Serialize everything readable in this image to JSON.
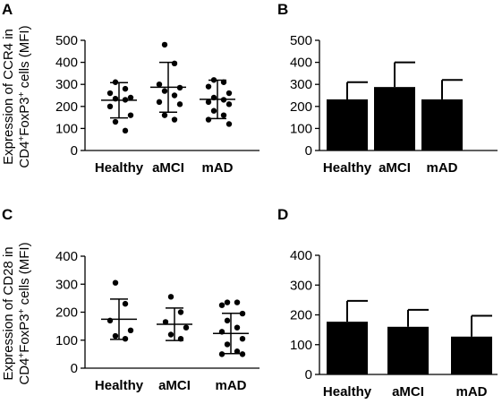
{
  "ylabel_rows": {
    "ccr4": {
      "line1": "Expression of CCR4 in",
      "line2_pre": "CD4",
      "line2_sup1": "+",
      "line2_mid": "FoxP3",
      "line2_sup2": "+",
      "line2_post": " cells (MFI)"
    },
    "cd28": {
      "line1": "Expression of CD28 in",
      "line2_pre": "CD4",
      "line2_sup1": "+",
      "line2_mid": "FoxP3",
      "line2_sup2": "+",
      "line2_post": " cells (MFI)"
    }
  },
  "chart_data": [
    {
      "panel": "A",
      "type": "scatter",
      "categories": [
        "Healthy",
        "aMCI",
        "mAD"
      ],
      "ylim": [
        0,
        500
      ],
      "yticks": [
        0,
        100,
        200,
        300,
        400,
        500
      ],
      "points": [
        [
          310,
          280,
          260,
          240,
          235,
          230,
          200,
          160,
          130,
          90
        ],
        [
          480,
          395,
          300,
          285,
          270,
          250,
          220,
          210,
          160,
          140
        ],
        [
          320,
          310,
          290,
          260,
          240,
          230,
          220,
          210,
          180,
          160,
          140,
          120
        ]
      ],
      "mean": [
        228,
        287,
        232
      ],
      "sd": [
        80,
        113,
        87
      ]
    },
    {
      "panel": "B",
      "type": "bar",
      "categories": [
        "Healthy",
        "aMCI",
        "mAD"
      ],
      "ylim": [
        0,
        500
      ],
      "yticks": [
        0,
        100,
        200,
        300,
        400,
        500
      ],
      "values": [
        232,
        288,
        232
      ],
      "errors": [
        78,
        112,
        88
      ]
    },
    {
      "panel": "C",
      "type": "scatter",
      "categories": [
        "Healthy",
        "aMCI",
        "mAD"
      ],
      "ylim": [
        0,
        400
      ],
      "yticks": [
        0,
        100,
        200,
        300,
        400
      ],
      "points": [
        [
          305,
          230,
          170,
          135,
          115,
          105
        ],
        [
          255,
          200,
          165,
          145,
          120,
          105
        ],
        [
          235,
          235,
          225,
          195,
          170,
          145,
          130,
          105,
          85,
          60,
          50,
          50
        ]
      ],
      "mean": [
        175,
        157,
        124
      ],
      "sd": [
        72,
        58,
        72
      ]
    },
    {
      "panel": "D",
      "type": "bar",
      "categories": [
        "Healthy",
        "aMCI",
        "mAD"
      ],
      "ylim": [
        0,
        400
      ],
      "yticks": [
        0,
        100,
        200,
        300,
        400
      ],
      "values": [
        177,
        160,
        127
      ],
      "errors": [
        70,
        57,
        70
      ]
    }
  ]
}
